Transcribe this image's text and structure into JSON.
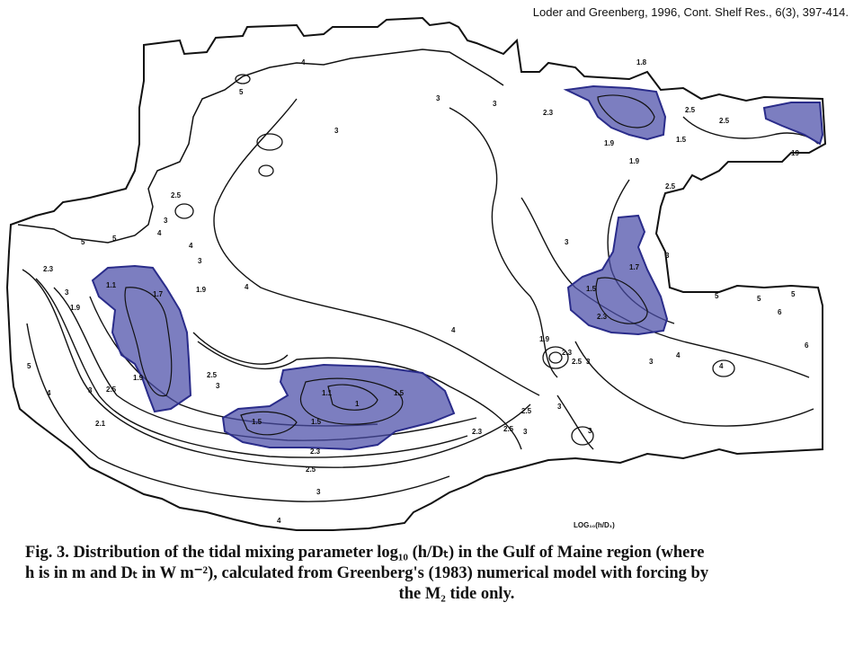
{
  "citation": "Loder and Greenberg, 1996, Cont. Shelf Res., 6(3), 397-414.",
  "legend_label": "LOG₁₀(h/D₁)",
  "caption": {
    "line1": "Fig. 3.   Distribution of the tidal mixing parameter log₁₀ (h/Dₜ) in the Gulf of Maine region (where",
    "line2": "h is in m and Dₜ in W m⁻²), calculated from Greenberg's (1983) numerical model with forcing by",
    "line3": "the M₂ tide only."
  },
  "contour_labels": {
    "label_1": "1",
    "label_1_1": "1.1",
    "label_1_5": "1.5",
    "label_1_7": "1.7",
    "label_1_8": "1.8",
    "label_1_9": "1.9",
    "label_2_1": "2.1",
    "label_2_3": "2.3",
    "label_2_5": "2.5",
    "label_3": "3",
    "label_4": "4",
    "label_5": "5",
    "label_6": "6",
    "label_19": "19"
  },
  "colors": {
    "shade_fill": "#4a4ca8",
    "shade_stroke": "#2a2c8a",
    "line": "#111111"
  }
}
